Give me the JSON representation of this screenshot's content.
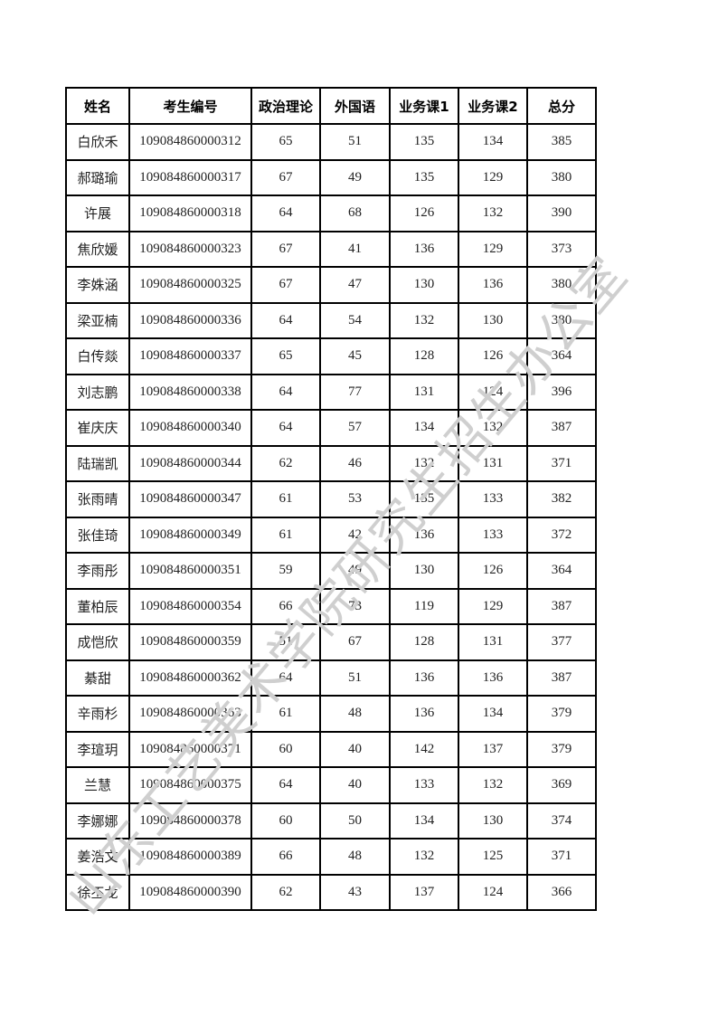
{
  "table": {
    "headers": [
      "姓名",
      "考生编号",
      "政治理论",
      "外国语",
      "业务课1",
      "业务课2",
      "总分"
    ],
    "rows": [
      [
        "白欣禾",
        "109084860000312",
        "65",
        "51",
        "135",
        "134",
        "385"
      ],
      [
        "郝璐瑜",
        "109084860000317",
        "67",
        "49",
        "135",
        "129",
        "380"
      ],
      [
        "许展",
        "109084860000318",
        "64",
        "68",
        "126",
        "132",
        "390"
      ],
      [
        "焦欣媛",
        "109084860000323",
        "67",
        "41",
        "136",
        "129",
        "373"
      ],
      [
        "李姝涵",
        "109084860000325",
        "67",
        "47",
        "130",
        "136",
        "380"
      ],
      [
        "梁亚楠",
        "109084860000336",
        "64",
        "54",
        "132",
        "130",
        "380"
      ],
      [
        "白传燚",
        "109084860000337",
        "65",
        "45",
        "128",
        "126",
        "364"
      ],
      [
        "刘志鹏",
        "109084860000338",
        "64",
        "77",
        "131",
        "124",
        "396"
      ],
      [
        "崔庆庆",
        "109084860000340",
        "64",
        "57",
        "134",
        "132",
        "387"
      ],
      [
        "陆瑞凯",
        "109084860000344",
        "62",
        "46",
        "132",
        "131",
        "371"
      ],
      [
        "张雨晴",
        "109084860000347",
        "61",
        "53",
        "135",
        "133",
        "382"
      ],
      [
        "张佳琦",
        "109084860000349",
        "61",
        "42",
        "136",
        "133",
        "372"
      ],
      [
        "李雨彤",
        "109084860000351",
        "59",
        "49",
        "130",
        "126",
        "364"
      ],
      [
        "董柏辰",
        "109084860000354",
        "66",
        "73",
        "119",
        "129",
        "387"
      ],
      [
        "成恺欣",
        "109084860000359",
        "51",
        "67",
        "128",
        "131",
        "377"
      ],
      [
        "綦甜",
        "109084860000362",
        "64",
        "51",
        "136",
        "136",
        "387"
      ],
      [
        "辛雨杉",
        "109084860000363",
        "61",
        "48",
        "136",
        "134",
        "379"
      ],
      [
        "李瑄玥",
        "109084860000371",
        "60",
        "40",
        "142",
        "137",
        "379"
      ],
      [
        "兰慧",
        "109084860000375",
        "64",
        "40",
        "133",
        "132",
        "369"
      ],
      [
        "李娜娜",
        "109084860000378",
        "60",
        "50",
        "134",
        "130",
        "374"
      ],
      [
        "姜浩文",
        "109084860000389",
        "66",
        "48",
        "132",
        "125",
        "371"
      ],
      [
        "徐丕龙",
        "109084860000390",
        "62",
        "43",
        "137",
        "124",
        "366"
      ]
    ]
  },
  "watermark": "山东工艺美术学院研究生招生办公室"
}
